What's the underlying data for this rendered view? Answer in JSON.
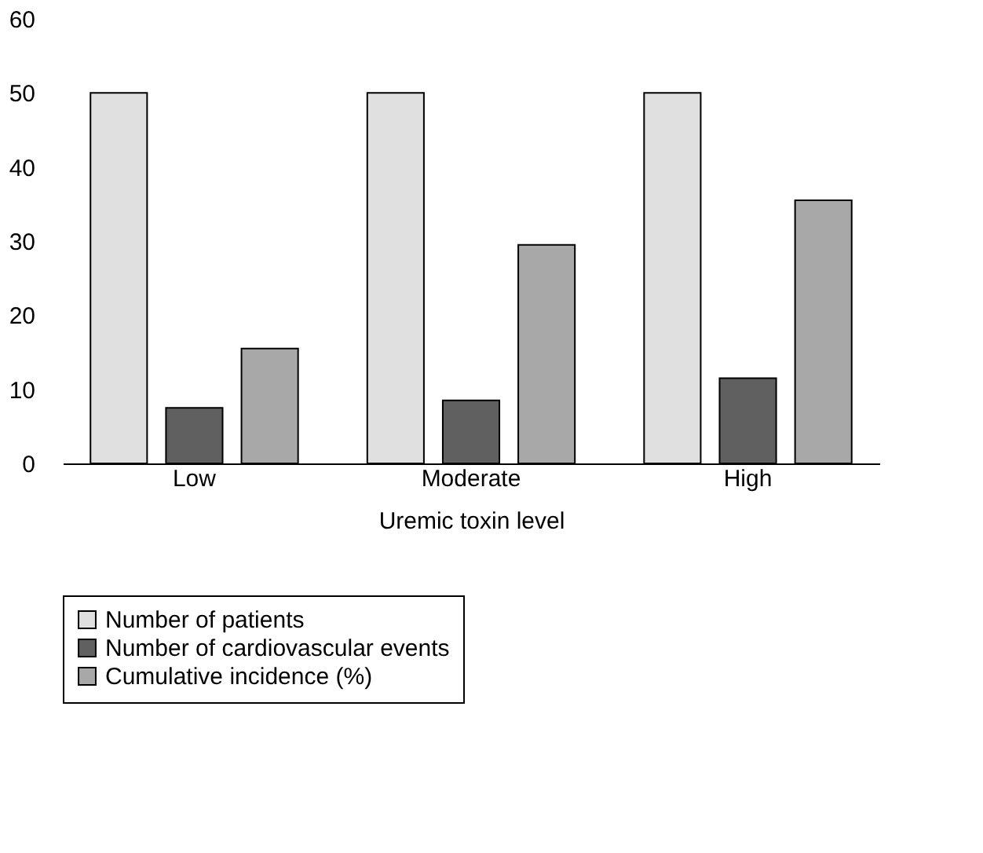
{
  "chart_data": {
    "type": "bar",
    "xlabel": "Uremic toxin level",
    "categories": [
      "Low",
      "Moderate",
      "High"
    ],
    "series": [
      {
        "name": "Number of patients",
        "color": "#e0e0e0",
        "values": [
          50,
          50,
          50
        ]
      },
      {
        "name": "Number of cardiovascular events",
        "color": "#606060",
        "values": [
          7.5,
          8.5,
          11.5
        ]
      },
      {
        "name": "Cumulative incidence (%)",
        "color": "#a8a8a8",
        "values": [
          15.5,
          29.5,
          35.5
        ]
      }
    ],
    "ylim": [
      0,
      60
    ],
    "yticks": [
      0,
      10,
      20,
      30,
      40,
      50,
      60
    ],
    "grid": false,
    "legend": "bottom"
  }
}
